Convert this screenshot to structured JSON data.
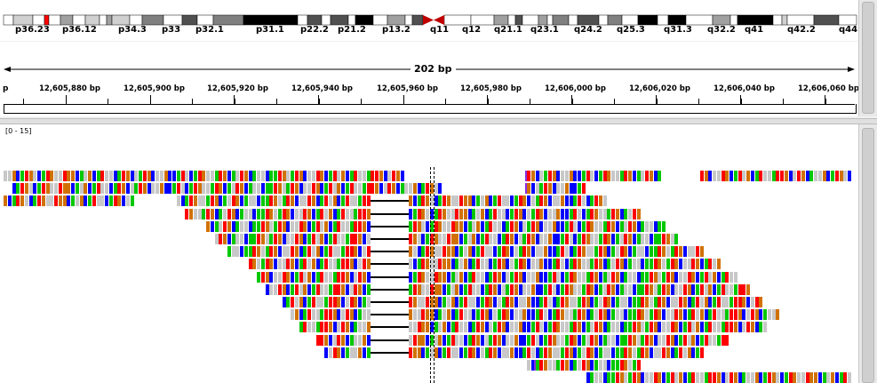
{
  "ideogram": {
    "bands": [
      "p36.23",
      "p36.12",
      "p34.3",
      "p33",
      "p32.1",
      "p31.1",
      "p22.2",
      "p21.2",
      "p13.2",
      "q11",
      "q12",
      "q21.1",
      "q23.1",
      "q24.2",
      "q25.3",
      "q31.3",
      "q32.2",
      "q41",
      "q42.2",
      "q44"
    ]
  },
  "ruler": {
    "span_label": "202 bp",
    "edge_label": "p",
    "ticks": [
      "12,605,880 bp",
      "12,605,900 bp",
      "12,605,920 bp",
      "12,605,940 bp",
      "12,605,960 bp",
      "12,605,980 bp",
      "12,606,000 bp",
      "12,606,020 bp",
      "12,606,040 bp",
      "12,606,060 bp"
    ]
  },
  "coverage": {
    "range_label": "[0 - 15]"
  },
  "colors": {
    "A": "#00c800",
    "C": "#0000ff",
    "G": "#d17105",
    "T": "#ff0000",
    "match": "#c8c8c8",
    "insertion": "#8a2be2"
  }
}
